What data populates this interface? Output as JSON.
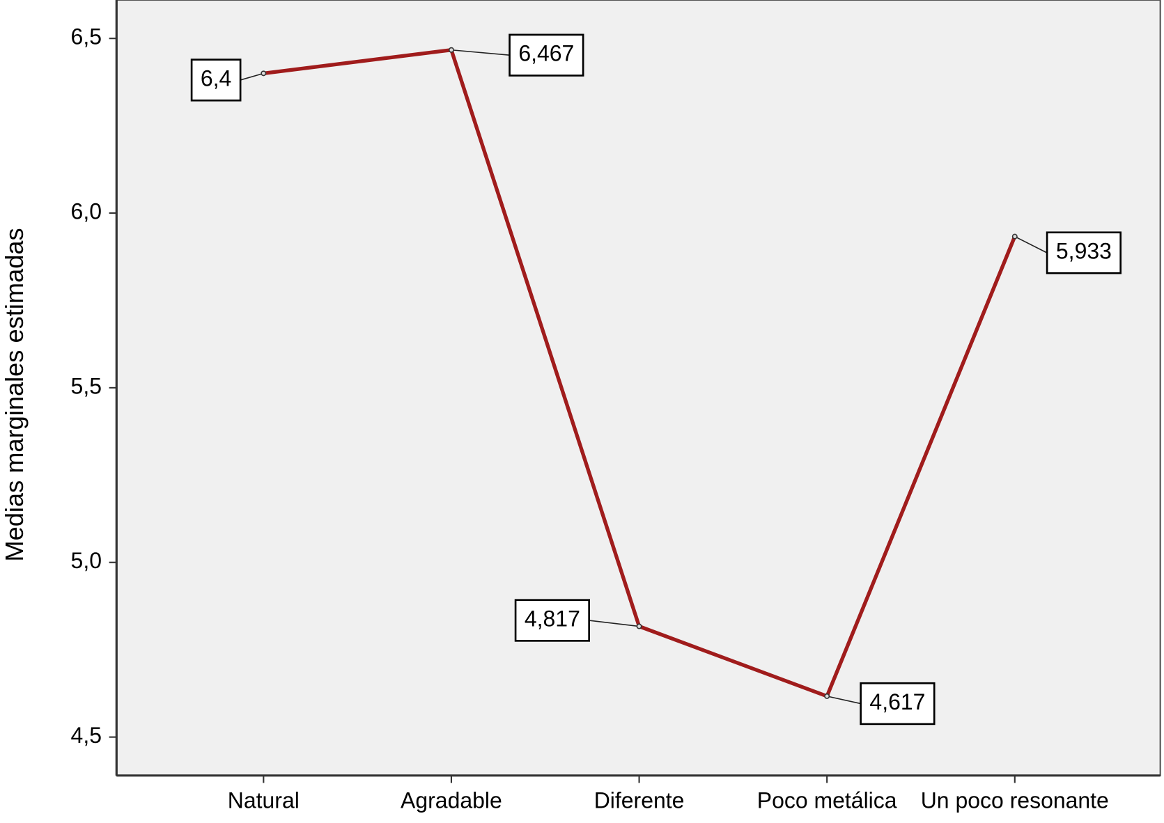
{
  "chart_data": {
    "type": "line",
    "y_label": "Medias marginales estimadas",
    "categories": [
      "Natural",
      "Agradable",
      "Diferente",
      "Poco metálica",
      "Un poco resonante"
    ],
    "values": [
      6.4,
      6.467,
      4.817,
      4.617,
      5.933
    ],
    "value_labels": [
      "6,4",
      "6,467",
      "4,817",
      "4,617",
      "5,933"
    ],
    "color": "#a01c1c",
    "ylim": [
      4.39,
      6.61
    ],
    "yticks": [
      {
        "value": 4.5,
        "label": "4,5"
      },
      {
        "value": 5.0,
        "label": "5,0"
      },
      {
        "value": 5.5,
        "label": "5,5"
      },
      {
        "value": 6.0,
        "label": "6,0"
      },
      {
        "value": 6.5,
        "label": "6,5"
      }
    ]
  }
}
